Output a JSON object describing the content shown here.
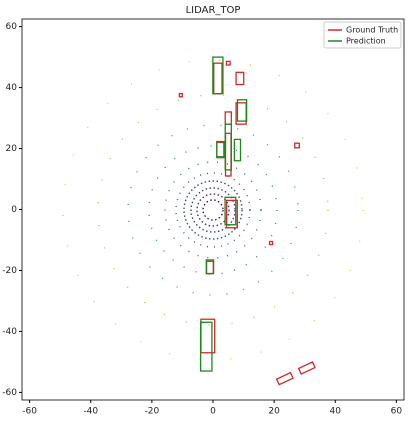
{
  "chart_data": {
    "type": "boxes",
    "title": "LIDAR_TOP",
    "xlim": [
      -62.5,
      62.5
    ],
    "ylim": [
      -62.5,
      62.5
    ],
    "xticks": [
      -60,
      -40,
      -20,
      0,
      20,
      40,
      60
    ],
    "yticks": [
      -60,
      -40,
      -20,
      0,
      20,
      40,
      60
    ],
    "legend": "upper right",
    "series": [
      {
        "name": "Ground Truth",
        "color": "#d62728",
        "boxes": [
          [
            1.6,
            43,
            2.7,
            10,
            0
          ],
          [
            8.8,
            43,
            2.5,
            4,
            0
          ],
          [
            9.2,
            31.5,
            3.3,
            7,
            0
          ],
          [
            5,
            30,
            2,
            4,
            0
          ],
          [
            2.4,
            19.5,
            2.3,
            5,
            0
          ],
          [
            5,
            18,
            1.8,
            14,
            0
          ],
          [
            6.2,
            -1.5,
            3.5,
            9,
            0
          ],
          [
            -1,
            -19,
            2.2,
            4,
            0
          ],
          [
            -1.7,
            -41.5,
            4.5,
            11,
            0
          ],
          [
            23.5,
            -55.5,
            5,
            2,
            -25
          ],
          [
            30.7,
            -52,
            5,
            2,
            -25
          ],
          [
            -10.5,
            37.5,
            1,
            1,
            0
          ],
          [
            5,
            48,
            1.2,
            1.2,
            0
          ],
          [
            27.5,
            21,
            1.5,
            1.5,
            0
          ],
          [
            19,
            -11,
            1,
            1,
            0
          ]
        ]
      },
      {
        "name": "Prediction",
        "color": "#1a8a1a",
        "boxes": [
          [
            1.6,
            44,
            3.3,
            12,
            0
          ],
          [
            9.5,
            32.5,
            3,
            7,
            0
          ],
          [
            2.5,
            19.8,
            2.5,
            5,
            0
          ],
          [
            5,
            20.5,
            2,
            15,
            0
          ],
          [
            8,
            19.5,
            2,
            7,
            0
          ],
          [
            5.7,
            -0.5,
            3.5,
            9,
            0
          ],
          [
            -1,
            -18.8,
            2.4,
            4.5,
            0
          ],
          [
            -2.2,
            -45,
            3.7,
            16,
            0
          ]
        ]
      }
    ]
  }
}
